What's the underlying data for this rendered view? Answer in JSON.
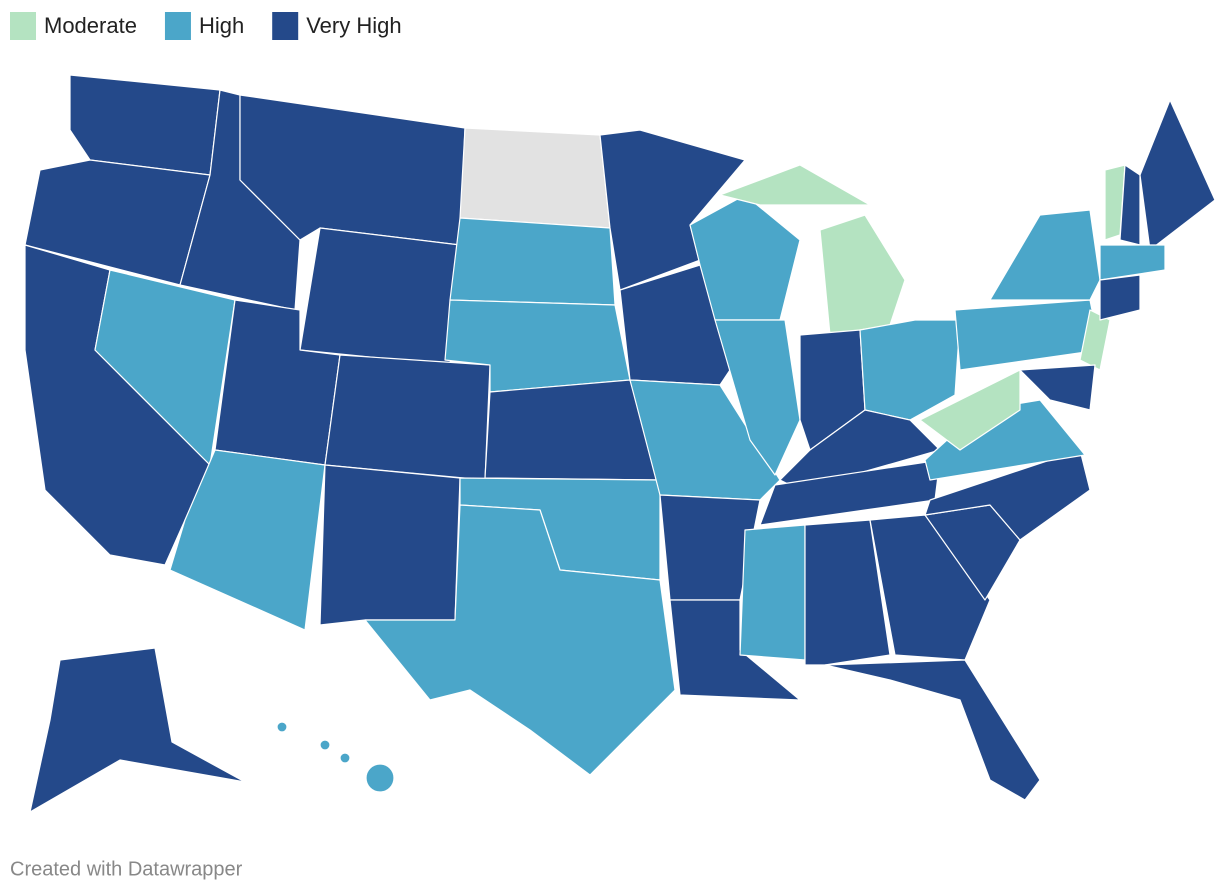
{
  "legend": {
    "items": [
      {
        "label": "Moderate",
        "color": "#b4e3c1"
      },
      {
        "label": "High",
        "color": "#4ba6c9"
      },
      {
        "label": "Very High",
        "color": "#24498a"
      }
    ]
  },
  "footer": {
    "credit": "Created with Datawrapper"
  }
}
